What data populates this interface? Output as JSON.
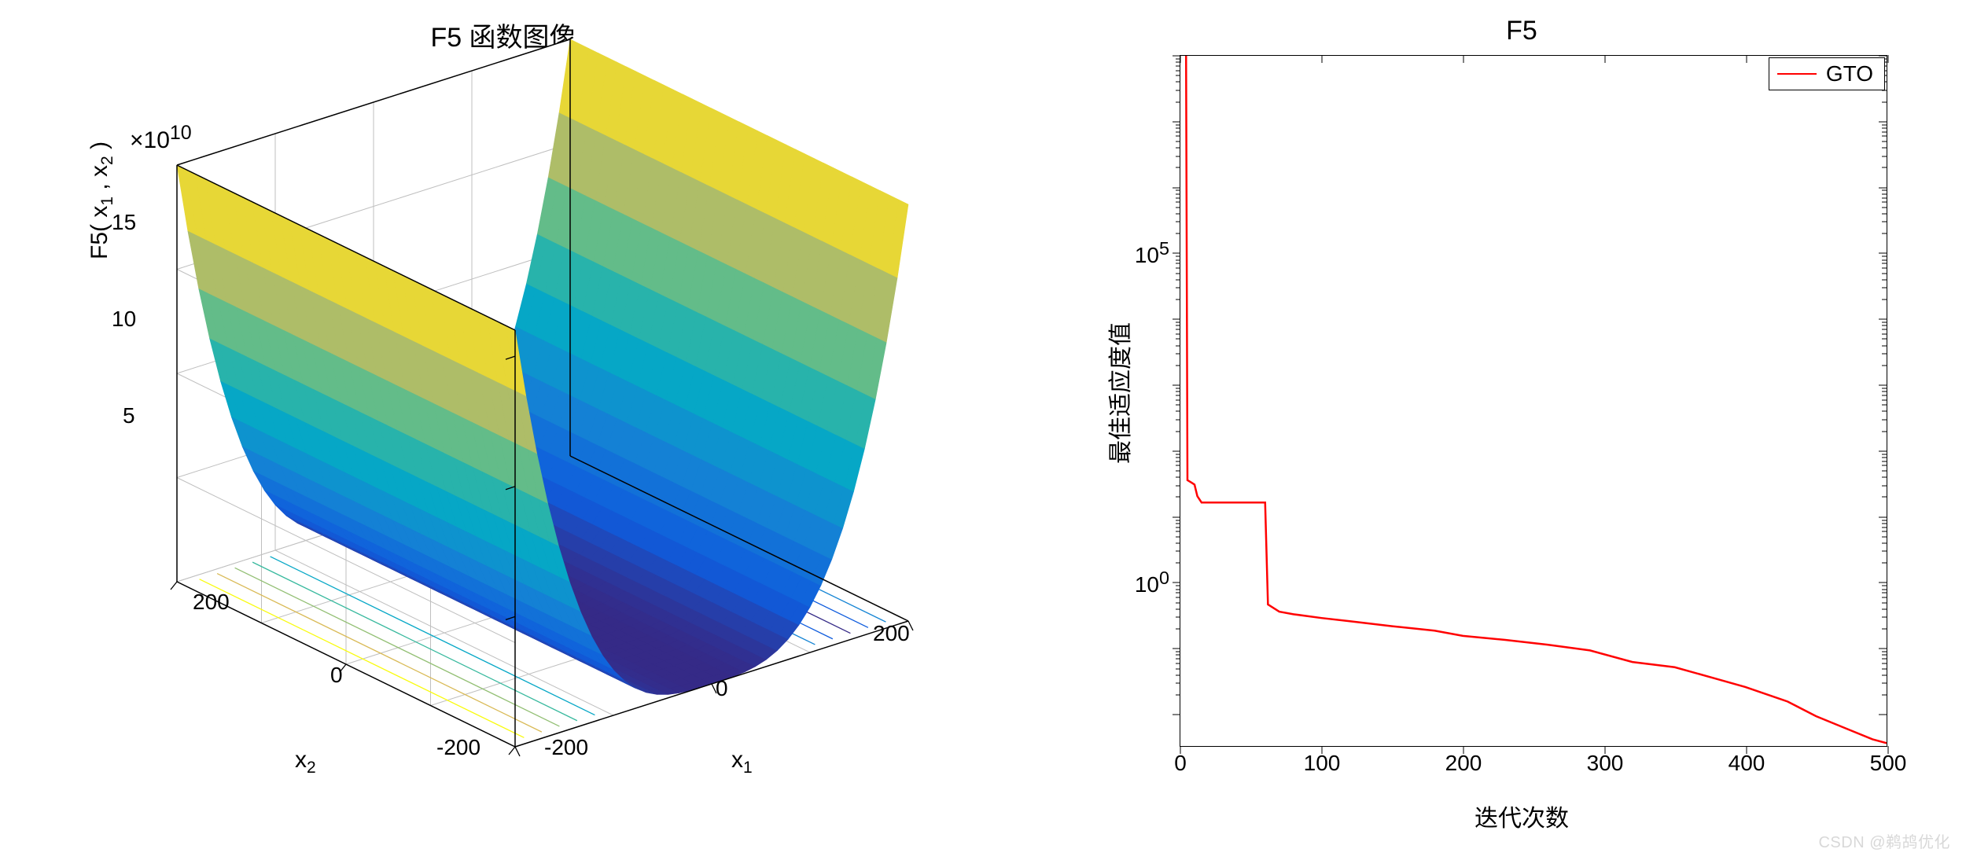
{
  "watermark": "CSDN @鹈鸪优化",
  "left_chart": {
    "type": "surface3d",
    "title": "F5 函数图像",
    "zlabel_html": "F5( x<sub>1</sub> , x<sub>2</sub> )",
    "z_exponent_label": "×10",
    "z_exponent_power": "10",
    "x_label_html": "x<sub>1</sub>",
    "y_label_html": "x<sub>2</sub>",
    "x_ticks": [
      "-200",
      "0",
      "200"
    ],
    "y_ticks": [
      "-200",
      "0",
      "200"
    ],
    "z_ticks": [
      "5",
      "10",
      "15"
    ],
    "xlim": [
      -200,
      200
    ],
    "ylim": [
      -200,
      200
    ],
    "zlim": [
      0,
      160000000000.0
    ],
    "colormap": {
      "name": "parula",
      "stops": [
        {
          "t": 0.0,
          "c": "#352a87"
        },
        {
          "t": 0.1,
          "c": "#0f5cdd"
        },
        {
          "t": 0.25,
          "c": "#1484d4"
        },
        {
          "t": 0.4,
          "c": "#06a7c6"
        },
        {
          "t": 0.55,
          "c": "#38b99e"
        },
        {
          "t": 0.7,
          "c": "#92bf73"
        },
        {
          "t": 0.85,
          "c": "#d9ba56"
        },
        {
          "t": 1.0,
          "c": "#f9fb0e"
        }
      ]
    },
    "surface_bands": 40,
    "grid_color": "#bfbfbf",
    "axis_edge_color": "#000000",
    "background_color": "#ffffff",
    "floor_contours": {
      "count": 10,
      "orientation": "along-x1",
      "colors_sample": [
        "#f9fb0e",
        "#d9ba56",
        "#92bf73",
        "#38b99e",
        "#06a7c6",
        "#1484d4",
        "#0f5cdd",
        "#352a87",
        "#0f5cdd",
        "#1484d4"
      ]
    },
    "title_fontsize": 34,
    "label_fontsize": 30,
    "tick_fontsize": 28
  },
  "right_chart": {
    "type": "line",
    "title": "F5",
    "xlabel": "迭代次数",
    "ylabel": "最佳适应度值",
    "xlim": [
      0,
      500
    ],
    "x_ticks": [
      "0",
      "100",
      "200",
      "300",
      "400",
      "500"
    ],
    "y_scale": "log",
    "y_ticks": [
      {
        "label": "10",
        "exp": "0",
        "value": 1
      },
      {
        "label": "10",
        "exp": "5",
        "value": 100000
      }
    ],
    "y_range_log10": [
      -2.5,
      8
    ],
    "legend": [
      {
        "label": "GTO",
        "color": "#ff0000"
      }
    ],
    "line_color": "#ff0000",
    "line_width": 2.5,
    "background_color": "#ffffff",
    "axis_color": "#000000",
    "grid": false,
    "title_fontsize": 34,
    "label_fontsize": 30,
    "tick_fontsize": 28,
    "series": [
      {
        "x": 0,
        "y": 300000000.0
      },
      {
        "x": 2,
        "y": 250000000.0
      },
      {
        "x": 4,
        "y": 150000000.0
      },
      {
        "x": 5,
        "y": 35.0
      },
      {
        "x": 8,
        "y": 32.0
      },
      {
        "x": 10,
        "y": 30.0
      },
      {
        "x": 12,
        "y": 20.0
      },
      {
        "x": 15,
        "y": 16.0
      },
      {
        "x": 20,
        "y": 16.0
      },
      {
        "x": 30,
        "y": 16.0
      },
      {
        "x": 50,
        "y": 16.0
      },
      {
        "x": 60,
        "y": 16.0
      },
      {
        "x": 62,
        "y": 0.45
      },
      {
        "x": 70,
        "y": 0.35
      },
      {
        "x": 80,
        "y": 0.32
      },
      {
        "x": 100,
        "y": 0.28
      },
      {
        "x": 120,
        "y": 0.25
      },
      {
        "x": 150,
        "y": 0.21
      },
      {
        "x": 180,
        "y": 0.18
      },
      {
        "x": 200,
        "y": 0.15
      },
      {
        "x": 230,
        "y": 0.13
      },
      {
        "x": 260,
        "y": 0.11
      },
      {
        "x": 290,
        "y": 0.09
      },
      {
        "x": 320,
        "y": 0.06
      },
      {
        "x": 350,
        "y": 0.05
      },
      {
        "x": 380,
        "y": 0.033
      },
      {
        "x": 400,
        "y": 0.025
      },
      {
        "x": 430,
        "y": 0.015
      },
      {
        "x": 450,
        "y": 0.009
      },
      {
        "x": 470,
        "y": 0.006
      },
      {
        "x": 490,
        "y": 0.004
      },
      {
        "x": 500,
        "y": 0.0035
      }
    ]
  }
}
